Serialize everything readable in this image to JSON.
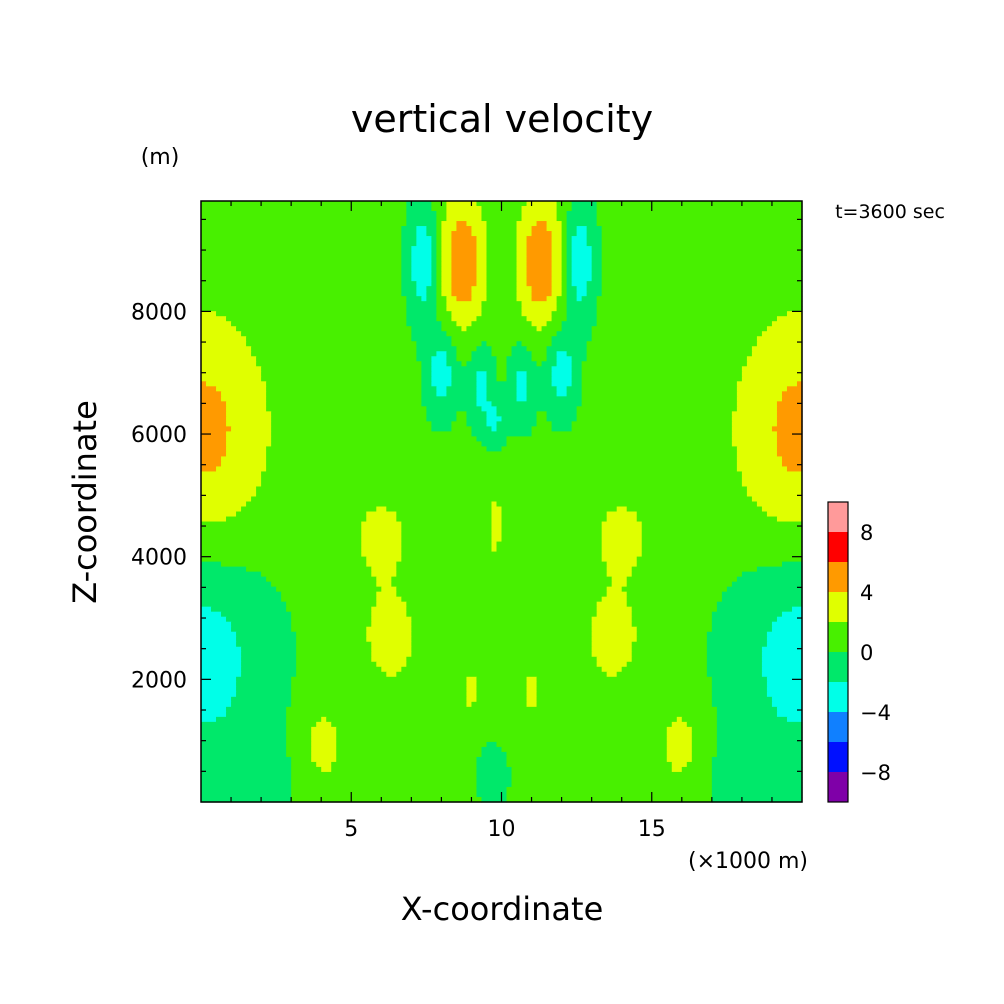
{
  "chart_data": {
    "type": "heatmap",
    "title": "vertical velocity",
    "xlabel": "X-coordinate",
    "ylabel": "Z-coordinate",
    "x_unit": "(×1000 m)",
    "y_unit": "(m)",
    "time_label": "t=3600 sec",
    "xlim": [
      0,
      20
    ],
    "ylim": [
      0,
      9800
    ],
    "x_ticks": [
      {
        "value": 5,
        "label": "5"
      },
      {
        "value": 10,
        "label": "10"
      },
      {
        "value": 15,
        "label": "15"
      }
    ],
    "y_ticks": [
      {
        "value": 2000,
        "label": "2000"
      },
      {
        "value": 4000,
        "label": "4000"
      },
      {
        "value": 6000,
        "label": "6000"
      },
      {
        "value": 8000,
        "label": "8000"
      }
    ],
    "colorbar": {
      "levels": [
        -10,
        -8,
        -6,
        -4,
        -2,
        0,
        2,
        4,
        6,
        8,
        10
      ],
      "colors": [
        "#7f00a8",
        "#0010ff",
        "#1080ff",
        "#00ffe8",
        "#00e86a",
        "#48f000",
        "#e0ff00",
        "#ff9a00",
        "#ff0000",
        "#ff9a9a"
      ],
      "tick_labels": [
        {
          "value": 8,
          "label": "8"
        },
        {
          "value": 4,
          "label": "4"
        },
        {
          "value": 0,
          "label": "0"
        },
        {
          "value": -4,
          "label": "−4"
        },
        {
          "value": -8,
          "label": "−8"
        }
      ]
    },
    "background_level": 0.5,
    "features": [
      {
        "x": 0.0,
        "z": 6000,
        "sx": 1.6,
        "sz": 1400,
        "w": 4.2,
        "mirror": false
      },
      {
        "x": 0.0,
        "z": 2400,
        "sx": 1.6,
        "sz": 1300,
        "w": -3.6,
        "mirror": false
      },
      {
        "x": 20.0,
        "z": 6000,
        "sx": 1.6,
        "sz": 1400,
        "w": 4.2,
        "mirror": false
      },
      {
        "x": 20.0,
        "z": 2400,
        "sx": 1.6,
        "sz": 1300,
        "w": -3.6,
        "mirror": false
      },
      {
        "x": 8.7,
        "z": 8800,
        "sx": 0.55,
        "sz": 750,
        "w": 5.2,
        "mirror": true
      },
      {
        "x": 7.4,
        "z": 8800,
        "sx": 0.35,
        "sz": 650,
        "w": -4.3,
        "mirror": true
      },
      {
        "x": 8.0,
        "z": 7000,
        "sx": 0.35,
        "sz": 500,
        "w": -3.6,
        "mirror": true
      },
      {
        "x": 9.3,
        "z": 6800,
        "sx": 0.3,
        "sz": 450,
        "w": -3.2,
        "mirror": true
      },
      {
        "x": 9.8,
        "z": 6200,
        "sx": 0.25,
        "sz": 250,
        "w": -2.6,
        "mirror": false
      },
      {
        "x": 6.0,
        "z": 4300,
        "sx": 0.6,
        "sz": 450,
        "w": 2.8,
        "mirror": true
      },
      {
        "x": 6.3,
        "z": 2700,
        "sx": 0.7,
        "sz": 600,
        "w": 2.6,
        "mirror": true
      },
      {
        "x": 4.0,
        "z": 900,
        "sx": 0.6,
        "sz": 500,
        "w": 2.6,
        "mirror": true
      },
      {
        "x": 9.8,
        "z": 4500,
        "sx": 0.15,
        "sz": 400,
        "w": 2.6,
        "mirror": false
      },
      {
        "x": 9.0,
        "z": 1800,
        "sx": 0.2,
        "sz": 300,
        "w": 2.2,
        "mirror": true
      },
      {
        "x": 2.5,
        "z": 500,
        "sx": 1.2,
        "sz": 600,
        "w": -0.8,
        "mirror": true
      },
      {
        "x": 9.7,
        "z": 400,
        "sx": 0.7,
        "sz": 700,
        "w": -0.7,
        "mirror": false
      }
    ]
  }
}
